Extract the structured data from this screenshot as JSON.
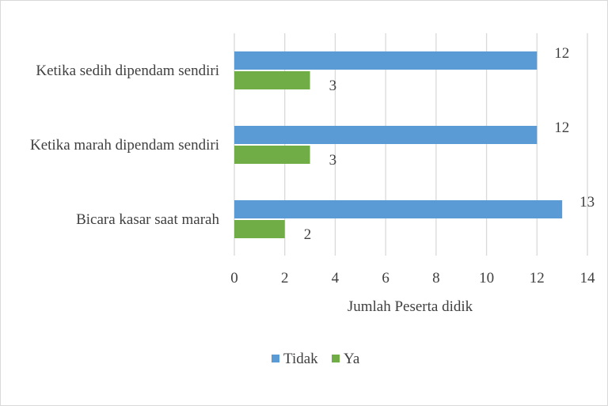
{
  "chart_data": {
    "type": "bar",
    "orientation": "horizontal",
    "categories": [
      "Ketika sedih dipendam sendiri",
      "Ketika marah dipendam sendiri",
      "Bicara kasar saat marah"
    ],
    "series": [
      {
        "name": "Tidak",
        "color": "#5b9bd5",
        "values": [
          12,
          12,
          13
        ]
      },
      {
        "name": "Ya",
        "color": "#70ad47",
        "values": [
          3,
          3,
          2
        ]
      }
    ],
    "xlabel": "Jumlah Peserta didik",
    "ylabel": "",
    "xlim": [
      0,
      14
    ],
    "xticks": [
      0,
      2,
      4,
      6,
      8,
      10,
      12,
      14
    ],
    "grid": true,
    "data_labels": true,
    "legend_position": "bottom"
  }
}
